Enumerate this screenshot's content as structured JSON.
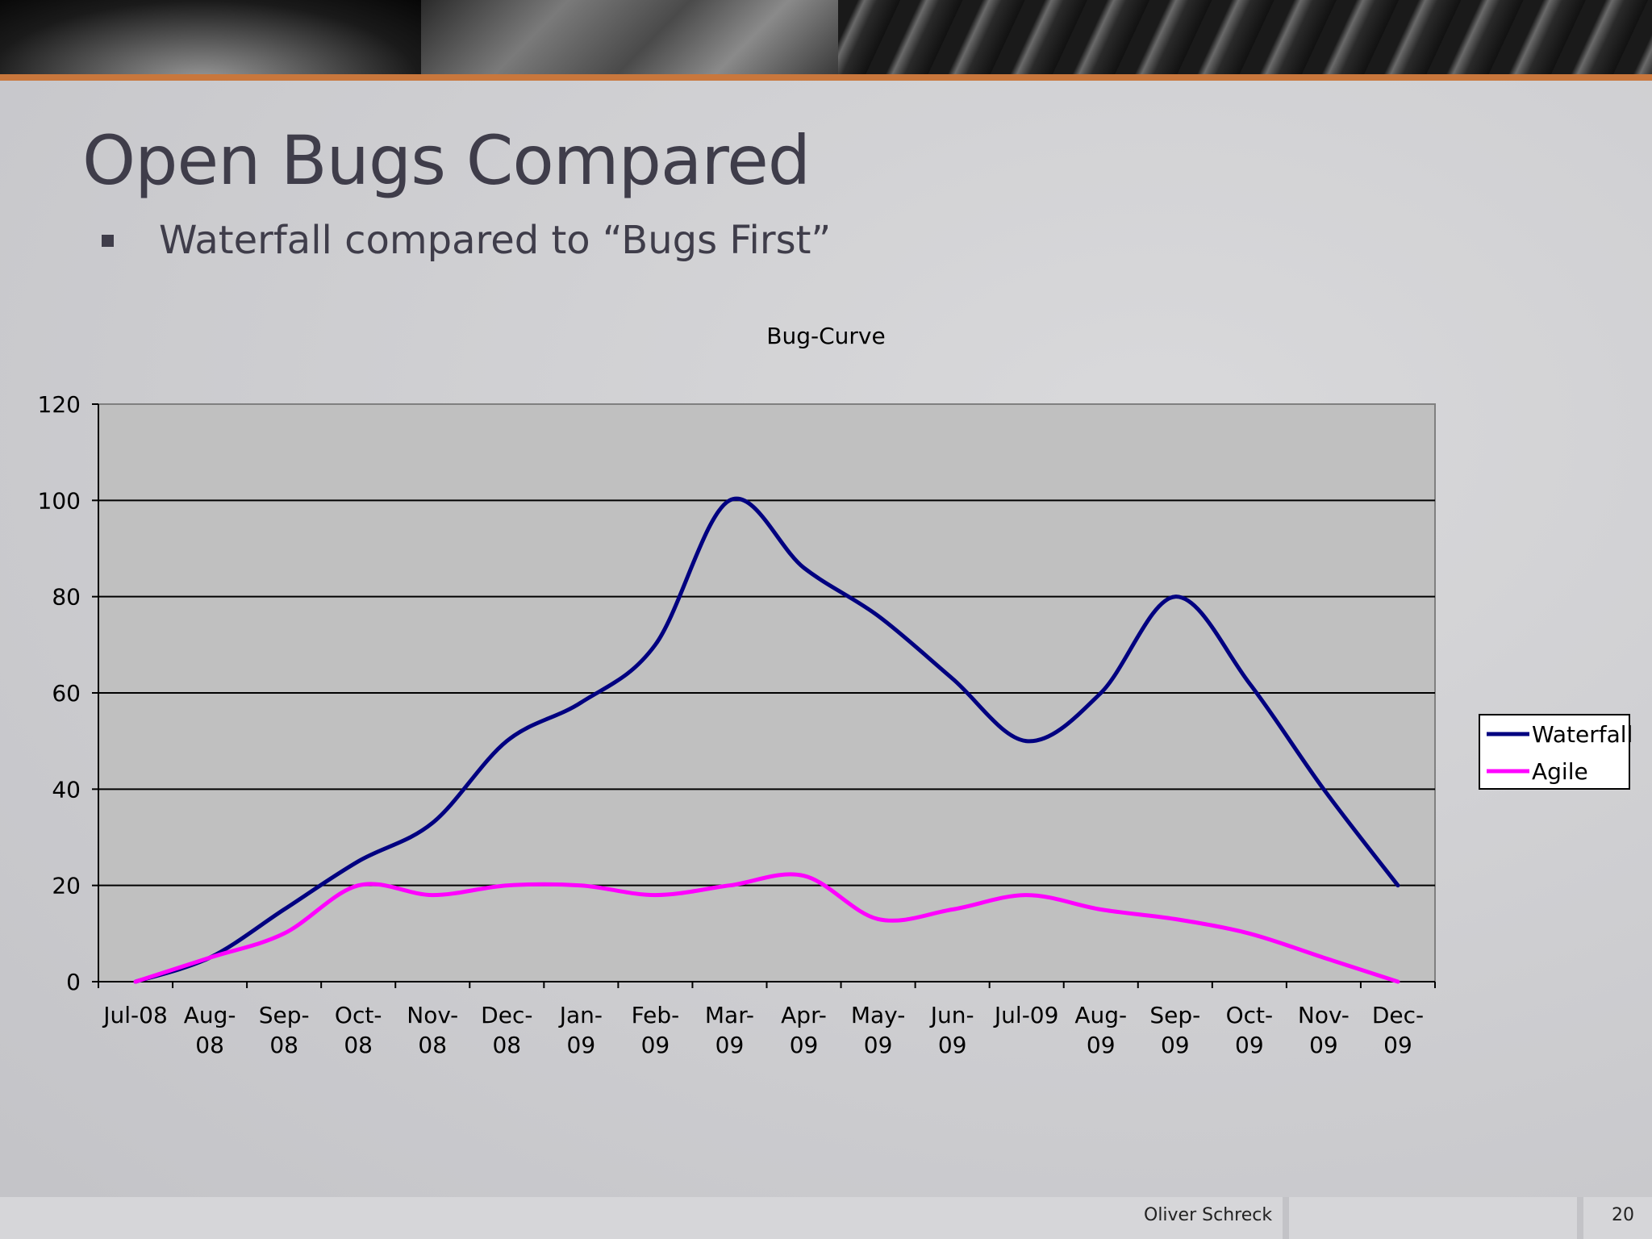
{
  "slide": {
    "title": "Open Bugs Compared",
    "bullet": "Waterfall compared to “Bugs First”",
    "footer_author": "Oliver Schreck",
    "page_number": "20"
  },
  "colors": {
    "accent_stripe": "#c9773c",
    "waterfall": "#000080",
    "agile": "#ff00ff",
    "plot_area": "#c0c0c0"
  },
  "chart_data": {
    "type": "line",
    "title": "Bug-Curve",
    "xlabel": "",
    "ylabel": "",
    "categories": [
      "Jul-08",
      "Aug-08",
      "Sep-08",
      "Oct-08",
      "Nov-08",
      "Dec-08",
      "Jan-09",
      "Feb-09",
      "Mar-09",
      "Apr-09",
      "May-09",
      "Jun-09",
      "Jul-09",
      "Aug-09",
      "Sep-09",
      "Oct-09",
      "Nov-09",
      "Dec-09"
    ],
    "category_label_lines": [
      [
        "Jul-08"
      ],
      [
        "Aug-",
        "08"
      ],
      [
        "Sep-",
        "08"
      ],
      [
        "Oct-",
        "08"
      ],
      [
        "Nov-",
        "08"
      ],
      [
        "Dec-",
        "08"
      ],
      [
        "Jan-",
        "09"
      ],
      [
        "Feb-",
        "09"
      ],
      [
        "Mar-",
        "09"
      ],
      [
        "Apr-",
        "09"
      ],
      [
        "May-",
        "09"
      ],
      [
        "Jun-",
        "09"
      ],
      [
        "Jul-09"
      ],
      [
        "Aug-",
        "09"
      ],
      [
        "Sep-",
        "09"
      ],
      [
        "Oct-",
        "09"
      ],
      [
        "Nov-",
        "09"
      ],
      [
        "Dec-",
        "09"
      ]
    ],
    "series": [
      {
        "name": "Waterfall",
        "color": "#000080",
        "values": [
          0,
          5,
          15,
          25,
          33,
          50,
          58,
          70,
          100,
          86,
          76,
          63,
          50,
          60,
          80,
          62,
          40,
          20
        ]
      },
      {
        "name": "Agile",
        "color": "#ff00ff",
        "values": [
          0,
          5,
          10,
          20,
          18,
          20,
          20,
          18,
          20,
          22,
          13,
          15,
          18,
          15,
          13,
          10,
          5,
          0
        ]
      }
    ],
    "ylim": [
      0,
      120
    ],
    "yticks": [
      0,
      20,
      40,
      60,
      80,
      100,
      120
    ],
    "grid": true,
    "legend": "right",
    "smooth": true
  }
}
